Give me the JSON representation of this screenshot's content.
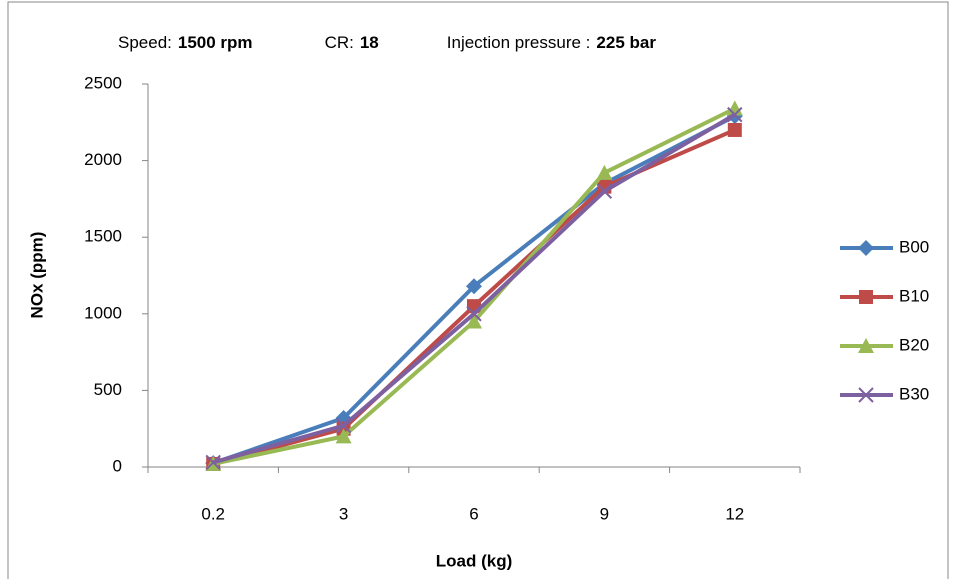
{
  "chart_data": {
    "type": "line",
    "title_parts": [
      {
        "text": "Speed:",
        "bold": false
      },
      {
        "text": "1500 rpm",
        "bold": true
      },
      {
        "text": "CR:",
        "bold": false
      },
      {
        "text": "18",
        "bold": true
      },
      {
        "text": "Injection pressure :",
        "bold": false
      },
      {
        "text": "225  bar",
        "bold": true
      }
    ],
    "x_label": "Load (kg)",
    "y_label": "NOx (ppm)",
    "categories": [
      "0.2",
      "3",
      "6",
      "9",
      "12"
    ],
    "series": [
      {
        "name": "B00",
        "color": "#4a7ebb",
        "marker": "diamond",
        "values": [
          25,
          320,
          1180,
          1850,
          2290
        ]
      },
      {
        "name": "B10",
        "color": "#be4b48",
        "marker": "square",
        "values": [
          20,
          250,
          1050,
          1830,
          2200
        ]
      },
      {
        "name": "B20",
        "color": "#98b954",
        "marker": "triangle",
        "values": [
          20,
          200,
          950,
          1920,
          2340
        ]
      },
      {
        "name": "B30",
        "color": "#7d60a0",
        "marker": "x",
        "values": [
          30,
          270,
          1000,
          1800,
          2300
        ]
      }
    ],
    "ylim": [
      0,
      2500
    ],
    "yticks": [
      0,
      500,
      1000,
      1500,
      2000,
      2500
    ],
    "grid": false,
    "legend": "right"
  }
}
